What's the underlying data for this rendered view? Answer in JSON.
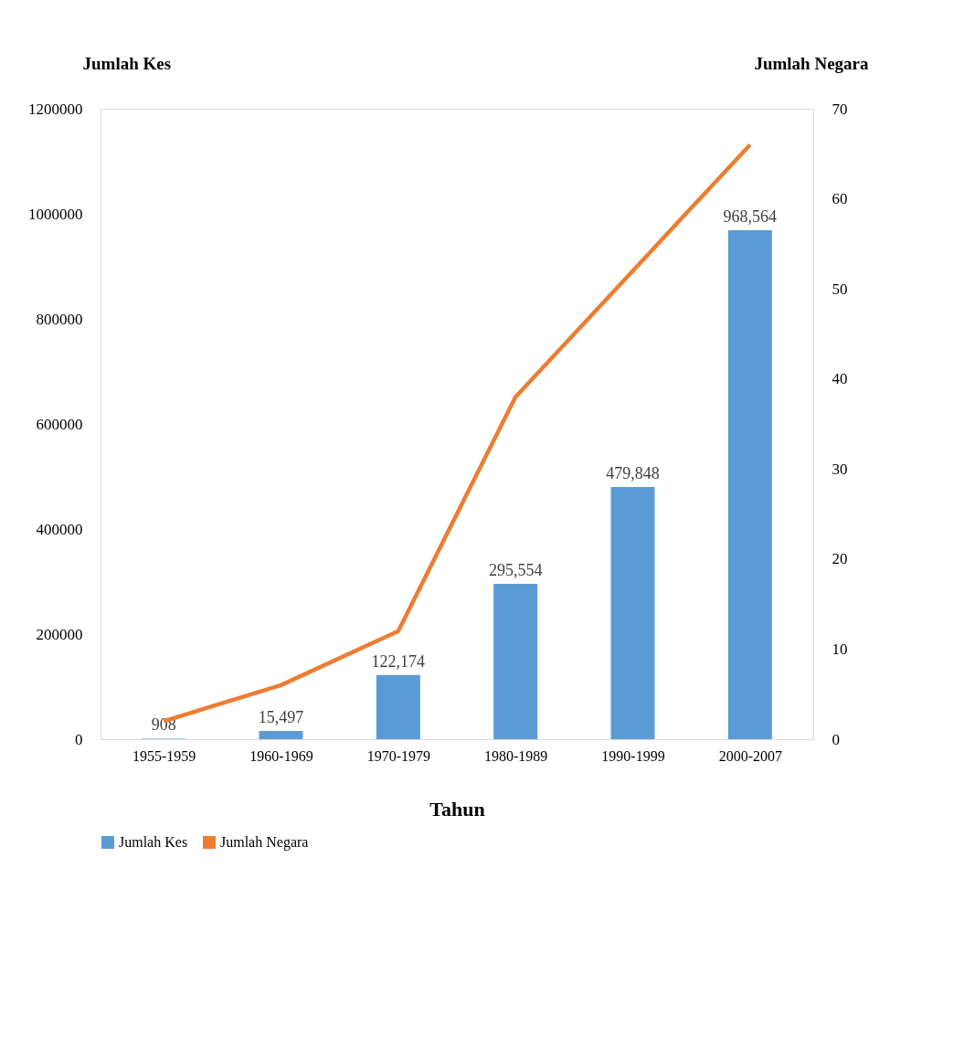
{
  "chart_data": {
    "type": "bar",
    "xlabel": "Tahun",
    "ylabel": "Jumlah Kes",
    "y2label": "Jumlah Negara",
    "categories": [
      "1955-1959",
      "1960-1969",
      "1970-1979",
      "1980-1989",
      "1990-1999",
      "2000-2007"
    ],
    "series": [
      {
        "name": "Jumlah Kes",
        "color": "#5b9bd5",
        "values": [
          908,
          15497,
          122174,
          295554,
          479848,
          968564
        ],
        "value_labels": [
          "908",
          "15,497",
          "122,174",
          "295,554",
          "479,848",
          "968,564"
        ]
      },
      {
        "name": "Jumlah Negara",
        "type": "line",
        "axis": "y2",
        "color": "#ed7d31",
        "values": [
          2,
          6,
          12,
          38,
          52,
          66
        ]
      }
    ],
    "ylim": [
      0,
      1200000
    ],
    "yticks": [
      0,
      200000,
      400000,
      600000,
      800000,
      1000000,
      1200000
    ],
    "y2lim": [
      0,
      70
    ],
    "y2ticks": [
      0,
      10,
      20,
      30,
      40,
      50,
      60,
      70
    ],
    "grid": false,
    "legend": "bottom"
  }
}
